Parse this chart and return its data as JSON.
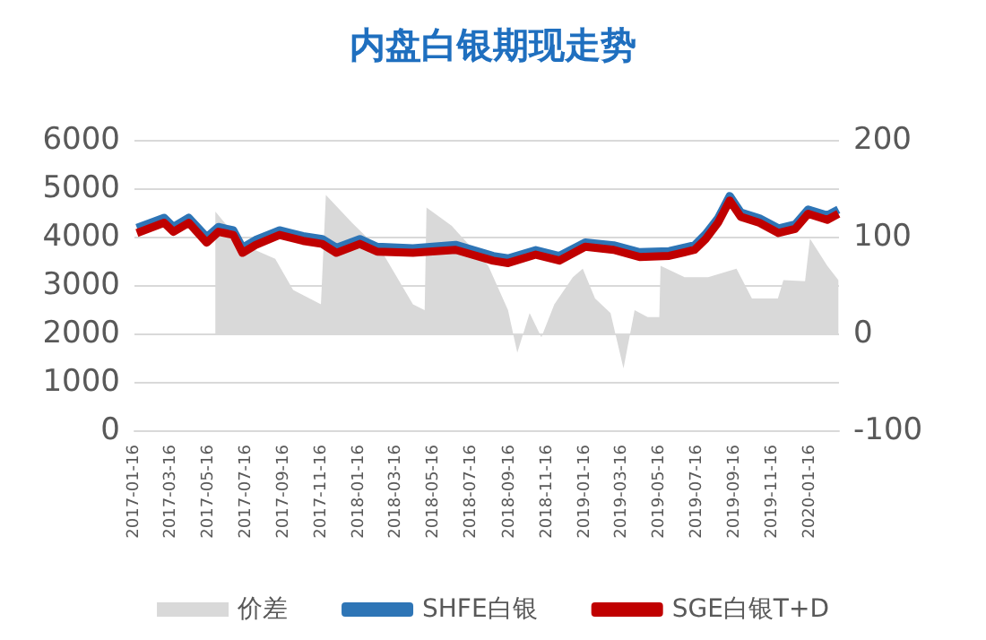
{
  "chart_data": {
    "type": "line",
    "title": "内盘白银期现走势",
    "xlim": [
      "2017-01-16",
      "2020-03-02"
    ],
    "xticks": [
      "2017-01-16",
      "2017-03-16",
      "2017-05-16",
      "2017-07-16",
      "2017-09-16",
      "2017-11-16",
      "2018-01-16",
      "2018-03-16",
      "2018-05-16",
      "2018-07-16",
      "2018-09-16",
      "2018-11-16",
      "2019-01-16",
      "2019-03-16",
      "2019-05-16",
      "2019-07-16",
      "2019-09-16",
      "2019-11-16",
      "2020-01-16"
    ],
    "ylim": [
      0,
      6000
    ],
    "yticks": [
      0,
      1000,
      2000,
      3000,
      4000,
      5000,
      6000
    ],
    "y2lim": [
      -100,
      200
    ],
    "y2ticks": [
      -100,
      0,
      100,
      200
    ],
    "grid": "y",
    "legend": "bottom",
    "marker": "none",
    "line_style": "solid",
    "series": [
      {
        "name": "价差",
        "type": "area",
        "axis": "y2",
        "color": "#d9d9d9",
        "x": [
          "2017-05-27",
          "2017-07-10",
          "2017-09-01",
          "2017-09-30",
          "2017-11-14",
          "2017-11-22",
          "2018-01-04",
          "2018-02-22",
          "2018-04-12",
          "2018-05-01",
          "2018-05-04",
          "2018-06-14",
          "2018-08-12",
          "2018-09-13",
          "2018-09-28",
          "2018-10-18",
          "2018-11-06",
          "2018-11-27",
          "2018-12-27",
          "2019-01-12",
          "2019-02-01",
          "2019-02-26",
          "2019-03-19",
          "2019-04-06",
          "2019-04-27",
          "2019-05-16",
          "2019-05-18",
          "2019-06-26",
          "2019-08-03",
          "2019-09-18",
          "2019-10-13",
          "2019-11-24",
          "2019-12-03",
          "2020-01-07",
          "2020-01-15",
          "2020-02-12",
          "2020-03-01"
        ],
        "values": [
          126,
          92,
          77,
          45,
          30,
          143,
          114,
          83,
          30,
          24,
          130,
          111,
          70,
          24,
          -20,
          21,
          -4,
          30,
          58,
          67,
          36,
          21,
          -36,
          24,
          17,
          17,
          70,
          58,
          58,
          67,
          36,
          36,
          55,
          54,
          98,
          70,
          55
        ]
      },
      {
        "name": "SHFE白银",
        "color": "#2e75b6",
        "x": [
          "2017-01-20",
          "2017-03-05",
          "2017-03-20",
          "2017-04-14",
          "2017-05-13",
          "2017-06-01",
          "2017-06-25",
          "2017-07-10",
          "2017-07-31",
          "2017-09-08",
          "2017-10-16",
          "2017-11-16",
          "2017-12-09",
          "2018-01-16",
          "2018-02-13",
          "2018-04-12",
          "2018-06-20",
          "2018-08-20",
          "2018-09-13",
          "2018-10-28",
          "2018-12-05",
          "2019-01-16",
          "2019-03-03",
          "2019-04-14",
          "2019-06-01",
          "2019-07-12",
          "2019-07-30",
          "2019-08-19",
          "2019-09-07",
          "2019-09-25",
          "2019-10-25",
          "2019-11-25",
          "2019-12-22",
          "2020-01-12",
          "2020-02-12",
          "2020-03-01"
        ],
        "values": [
          4180,
          4390,
          4200,
          4390,
          3990,
          4200,
          4130,
          3770,
          3930,
          4130,
          4010,
          3950,
          3770,
          3950,
          3790,
          3760,
          3830,
          3600,
          3550,
          3720,
          3600,
          3880,
          3820,
          3680,
          3700,
          3820,
          4050,
          4380,
          4840,
          4500,
          4380,
          4170,
          4250,
          4560,
          4440,
          4560
        ]
      },
      {
        "name": "SGE白银T+D",
        "color": "#c00000",
        "x": [
          "2017-01-20",
          "2017-03-05",
          "2017-03-20",
          "2017-04-14",
          "2017-05-13",
          "2017-06-01",
          "2017-06-25",
          "2017-07-10",
          "2017-07-31",
          "2017-09-08",
          "2017-10-16",
          "2017-11-16",
          "2017-12-09",
          "2018-01-16",
          "2018-02-13",
          "2018-04-12",
          "2018-06-20",
          "2018-08-20",
          "2018-09-13",
          "2018-10-28",
          "2018-12-05",
          "2019-01-16",
          "2019-03-03",
          "2019-04-14",
          "2019-06-01",
          "2019-07-12",
          "2019-07-30",
          "2019-08-19",
          "2019-09-07",
          "2019-09-25",
          "2019-10-25",
          "2019-11-25",
          "2019-12-22",
          "2020-01-12",
          "2020-02-12",
          "2020-03-01"
        ],
        "values": [
          4075,
          4286,
          4100,
          4286,
          3876,
          4100,
          4036,
          3665,
          3827,
          4036,
          3913,
          3850,
          3665,
          3850,
          3690,
          3665,
          3727,
          3503,
          3455,
          3629,
          3505,
          3790,
          3727,
          3580,
          3604,
          3727,
          3950,
          4286,
          4745,
          4410,
          4286,
          4075,
          4160,
          4472,
          4348,
          4472
        ]
      }
    ]
  }
}
